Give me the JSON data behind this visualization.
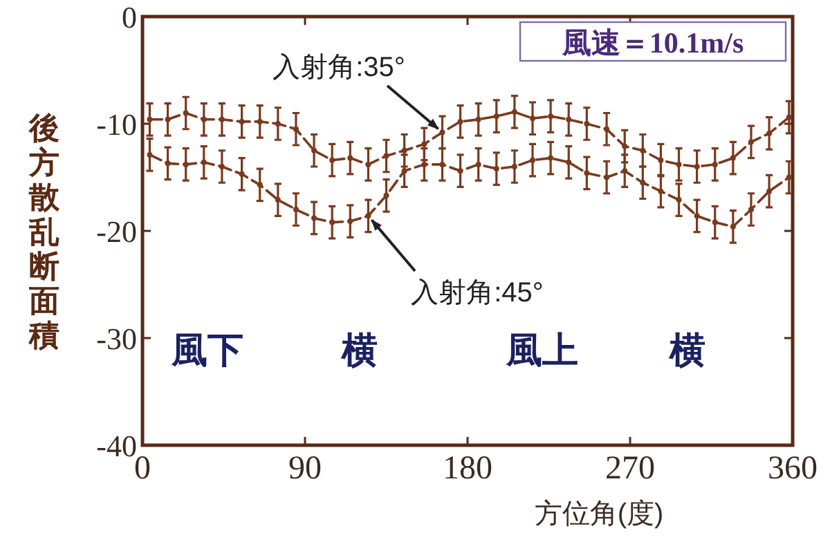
{
  "chart_data": {
    "type": "line",
    "xlabel": "方位角(度)",
    "ylabel": "後方散乱断面積",
    "x": [
      4,
      14,
      24,
      34,
      44,
      55,
      65,
      75,
      85,
      95,
      105,
      115,
      125,
      135,
      145,
      156,
      166,
      176,
      186,
      196,
      206,
      216,
      226,
      236,
      246,
      257,
      267,
      277,
      287,
      297,
      307,
      317,
      327,
      337,
      347,
      358
    ],
    "series": [
      {
        "name": "入射角:35°",
        "color": "#7a3a1e",
        "values": [
          -9.6,
          -9.6,
          -9.0,
          -9.6,
          -9.6,
          -9.8,
          -9.8,
          -10.0,
          -10.5,
          -12.5,
          -13.4,
          -13.2,
          -13.8,
          -13.0,
          -12.5,
          -11.9,
          -10.8,
          -9.8,
          -9.6,
          -9.3,
          -8.9,
          -9.5,
          -9.3,
          -9.6,
          -10.0,
          -10.5,
          -12.1,
          -12.5,
          -13.4,
          -13.8,
          -14.0,
          -13.8,
          -13.2,
          -11.7,
          -10.9,
          -9.4
        ],
        "errors": [
          1.5,
          1.5,
          1.5,
          1.5,
          1.5,
          1.5,
          1.5,
          1.5,
          1.5,
          1.5,
          1.5,
          1.5,
          1.5,
          1.5,
          1.5,
          1.5,
          1.5,
          1.5,
          1.5,
          1.5,
          1.5,
          1.5,
          1.5,
          1.5,
          1.5,
          1.5,
          1.5,
          1.5,
          1.5,
          1.5,
          1.5,
          1.5,
          1.5,
          1.5,
          1.5,
          1.5
        ]
      },
      {
        "name": "入射角:45°",
        "color": "#7a3a1e",
        "values": [
          -12.9,
          -13.7,
          -13.8,
          -13.6,
          -14.0,
          -14.7,
          -15.7,
          -17.1,
          -18.0,
          -18.8,
          -19.2,
          -19.1,
          -18.6,
          -16.7,
          -14.4,
          -13.8,
          -13.8,
          -14.4,
          -13.8,
          -14.2,
          -14.0,
          -13.4,
          -13.2,
          -13.6,
          -14.6,
          -15.0,
          -14.4,
          -15.5,
          -16.3,
          -17.1,
          -18.6,
          -19.2,
          -19.6,
          -18.0,
          -16.3,
          -15.0
        ],
        "errors": [
          1.5,
          1.5,
          1.5,
          1.5,
          1.5,
          1.5,
          1.5,
          1.5,
          1.5,
          1.5,
          1.5,
          1.5,
          1.5,
          1.5,
          1.5,
          1.5,
          1.5,
          1.5,
          1.5,
          1.5,
          1.5,
          1.5,
          1.5,
          1.5,
          1.5,
          1.5,
          1.5,
          1.5,
          1.5,
          1.5,
          1.5,
          1.5,
          1.5,
          1.5,
          1.5,
          1.5
        ]
      }
    ],
    "xlim": [
      0,
      360
    ],
    "xticks": [
      0,
      90,
      180,
      270,
      360
    ],
    "ylim": [
      -40,
      0
    ],
    "yticks": [
      0,
      -10,
      -20,
      -30,
      -40
    ],
    "marker": "circle",
    "line_style": "dashed",
    "annotations": [
      "風速＝10.1m/s",
      "風下",
      "横",
      "風上",
      "横"
    ]
  }
}
